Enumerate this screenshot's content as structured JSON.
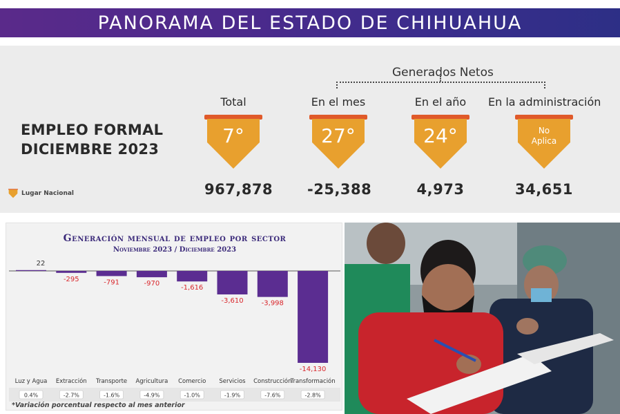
{
  "banner": {
    "title": "PANORAMA DEL ESTADO DE CHIHUAHUA"
  },
  "summary": {
    "title_line1": "EMPLEO FORMAL",
    "title_line2": "DICIEMBRE 2023",
    "group_label": "Generados Netos",
    "legend": "Lugar Nacional",
    "kpis": [
      {
        "label": "Total",
        "rank": "7°",
        "value": "967,878"
      },
      {
        "label": "En el mes",
        "rank": "27°",
        "value": "-25,388"
      },
      {
        "label": "En el año",
        "rank": "24°",
        "value": "4,973"
      },
      {
        "label": "En la administración",
        "rank_line1": "No",
        "rank_line2": "Aplica",
        "value": "34,651"
      }
    ],
    "colors": {
      "shield": "#e8a02e",
      "shield_band": "#e05a2a"
    }
  },
  "chart": {
    "title": "Generación mensual de empleo por sector",
    "subtitle": "Noviembre 2023 / Diciembre 2023",
    "note": "*Variación porcentual respecto al mes anterior"
  },
  "chart_data": {
    "type": "bar",
    "title": "Generación mensual de empleo por sector",
    "subtitle": "Noviembre 2023 / Diciembre 2023",
    "categories": [
      "Luz y Agua",
      "Extracción",
      "Transporte",
      "Agricultura",
      "Comercio",
      "Servicios",
      "Construcción",
      "Transformación"
    ],
    "values": [
      22,
      -295,
      -791,
      -970,
      -1616,
      -3610,
      -3998,
      -14130
    ],
    "value_labels": [
      "22",
      "-295",
      "-791",
      "-970",
      "-1,616",
      "-3,610",
      "-3,998",
      "-14,130"
    ],
    "pct_change": [
      "0.4%",
      "-2.7%",
      "-1.6%",
      "-4.9%",
      "-1.0%",
      "-1.9%",
      "-7.6%",
      "-2.8%"
    ],
    "ylim": [
      -14130,
      22
    ],
    "bar_color": "#5b2d91",
    "negative_label_color": "#d9262b",
    "positive_label_color": "#333333"
  },
  "photo": {
    "description_icon": "photo-people-filling-forms"
  }
}
